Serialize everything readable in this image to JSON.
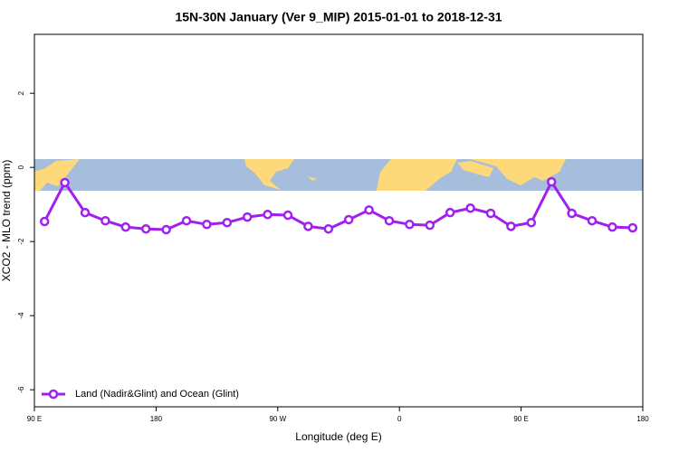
{
  "chart_data": {
    "type": "line",
    "title": "15N-30N January (Ver 9_MIP)   2015-01-01 to 2018-12-31",
    "x_label": "Longitude (deg E)",
    "y_label": "XCO2 - MLO trend (ppm)",
    "x": [
      97.5,
      112.5,
      127.5,
      142.5,
      157.5,
      172.5,
      187.5,
      202.5,
      217.5,
      232.5,
      247.5,
      262.5,
      277.5,
      292.5,
      307.5,
      322.5,
      337.5,
      352.5,
      367.5,
      382.5,
      397.5,
      412.5,
      427.5,
      442.5,
      457.5,
      472.5,
      487.5,
      502.5,
      517.5,
      532.5
    ],
    "series": [
      {
        "name": "Land (Nadir&Glint) and Ocean (Glint)",
        "color": "#a020f0",
        "values": [
          -1.46,
          -0.41,
          -1.22,
          -1.44,
          -1.61,
          -1.66,
          -1.68,
          -1.44,
          -1.54,
          -1.49,
          -1.34,
          -1.27,
          -1.29,
          -1.59,
          -1.66,
          -1.41,
          -1.15,
          -1.44,
          -1.54,
          -1.56,
          -1.22,
          -1.1,
          -1.24,
          -1.59,
          -1.49,
          -0.39,
          -1.24,
          -1.44,
          -1.61,
          -1.63
        ]
      }
    ],
    "xlim": [
      90,
      540
    ],
    "xticks": [
      {
        "value": 90,
        "label": "90 E"
      },
      180,
      {
        "value": 270,
        "label": "90 W"
      },
      {
        "value": 360,
        "label": "0"
      },
      {
        "value": 450,
        "label": "90 E"
      },
      {
        "value": 540,
        "label": "180"
      }
    ],
    "ylim": [
      -6.46,
      3.59
    ],
    "yticks": [
      2,
      0,
      -2,
      -4,
      -6
    ],
    "legend": "bottomleft"
  }
}
